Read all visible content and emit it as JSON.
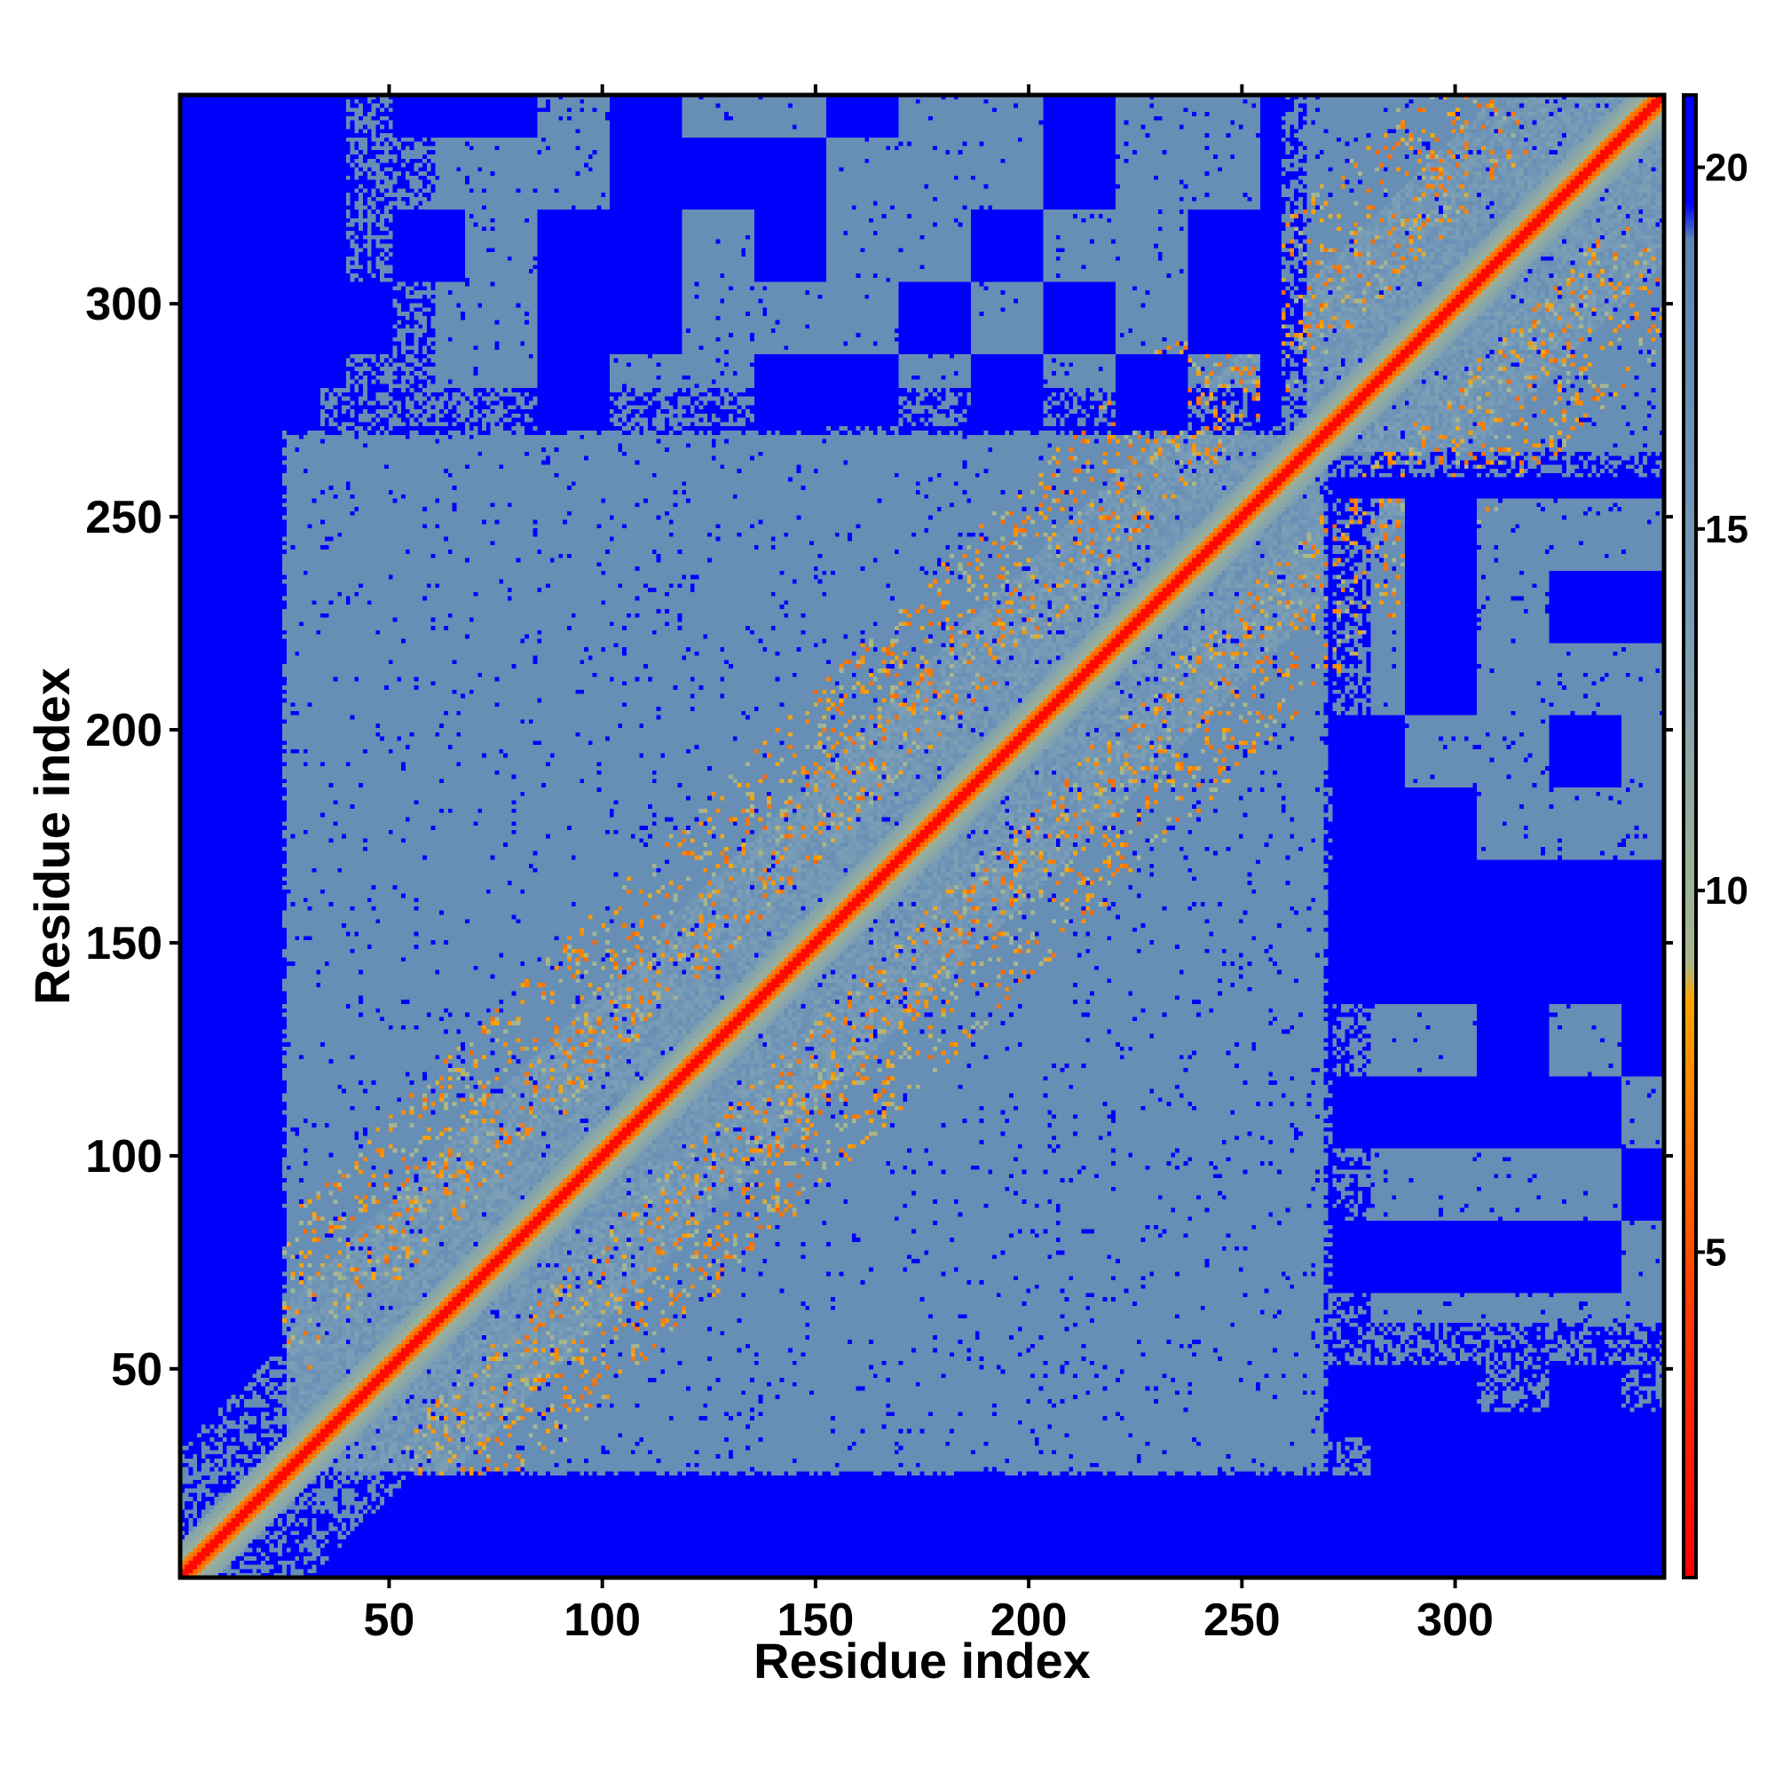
{
  "chart_data": {
    "type": "heatmap",
    "title": "",
    "xlabel": "Residue index",
    "ylabel": "Residue index",
    "xlim": [
      1,
      349
    ],
    "ylim": [
      1,
      349
    ],
    "x_ticks": [
      50,
      100,
      150,
      200,
      250,
      300
    ],
    "y_ticks": [
      50,
      100,
      150,
      200,
      250,
      300
    ],
    "x_tick_labels": [
      "50",
      "100",
      "150",
      "200",
      "250",
      "300"
    ],
    "y_tick_labels": [
      "50",
      "100",
      "150",
      "200",
      "250",
      "300"
    ],
    "colorbar": {
      "ticks": [
        5,
        10,
        15,
        20
      ],
      "tick_labels": [
        "5",
        "10",
        "15",
        "20"
      ],
      "range": [
        0.5,
        21
      ],
      "stops": [
        {
          "value": 0.5,
          "color": "#ff0000"
        },
        {
          "value": 4.5,
          "color": "#ff4000"
        },
        {
          "value": 8.5,
          "color": "#ffa500"
        },
        {
          "value": 9.0,
          "color": "#a8b88c"
        },
        {
          "value": 13.5,
          "color": "#7b9eb6"
        },
        {
          "value": 19.0,
          "color": "#5b85b5"
        },
        {
          "value": 19.5,
          "color": "#0000ff"
        },
        {
          "value": 21.0,
          "color": "#0000ff"
        }
      ]
    },
    "matrix_description_values": {
      "diagonal_distance": 1.0,
      "near_diagonal_distance": 8.0,
      "contact_band_distance": 6.0,
      "mid_distance": 17.0,
      "far_distance": 21.0
    },
    "colors": {
      "low": "#ff0000",
      "contact": "#ffa500",
      "mid": "#5b85b5",
      "high": "#0000ff"
    }
  }
}
